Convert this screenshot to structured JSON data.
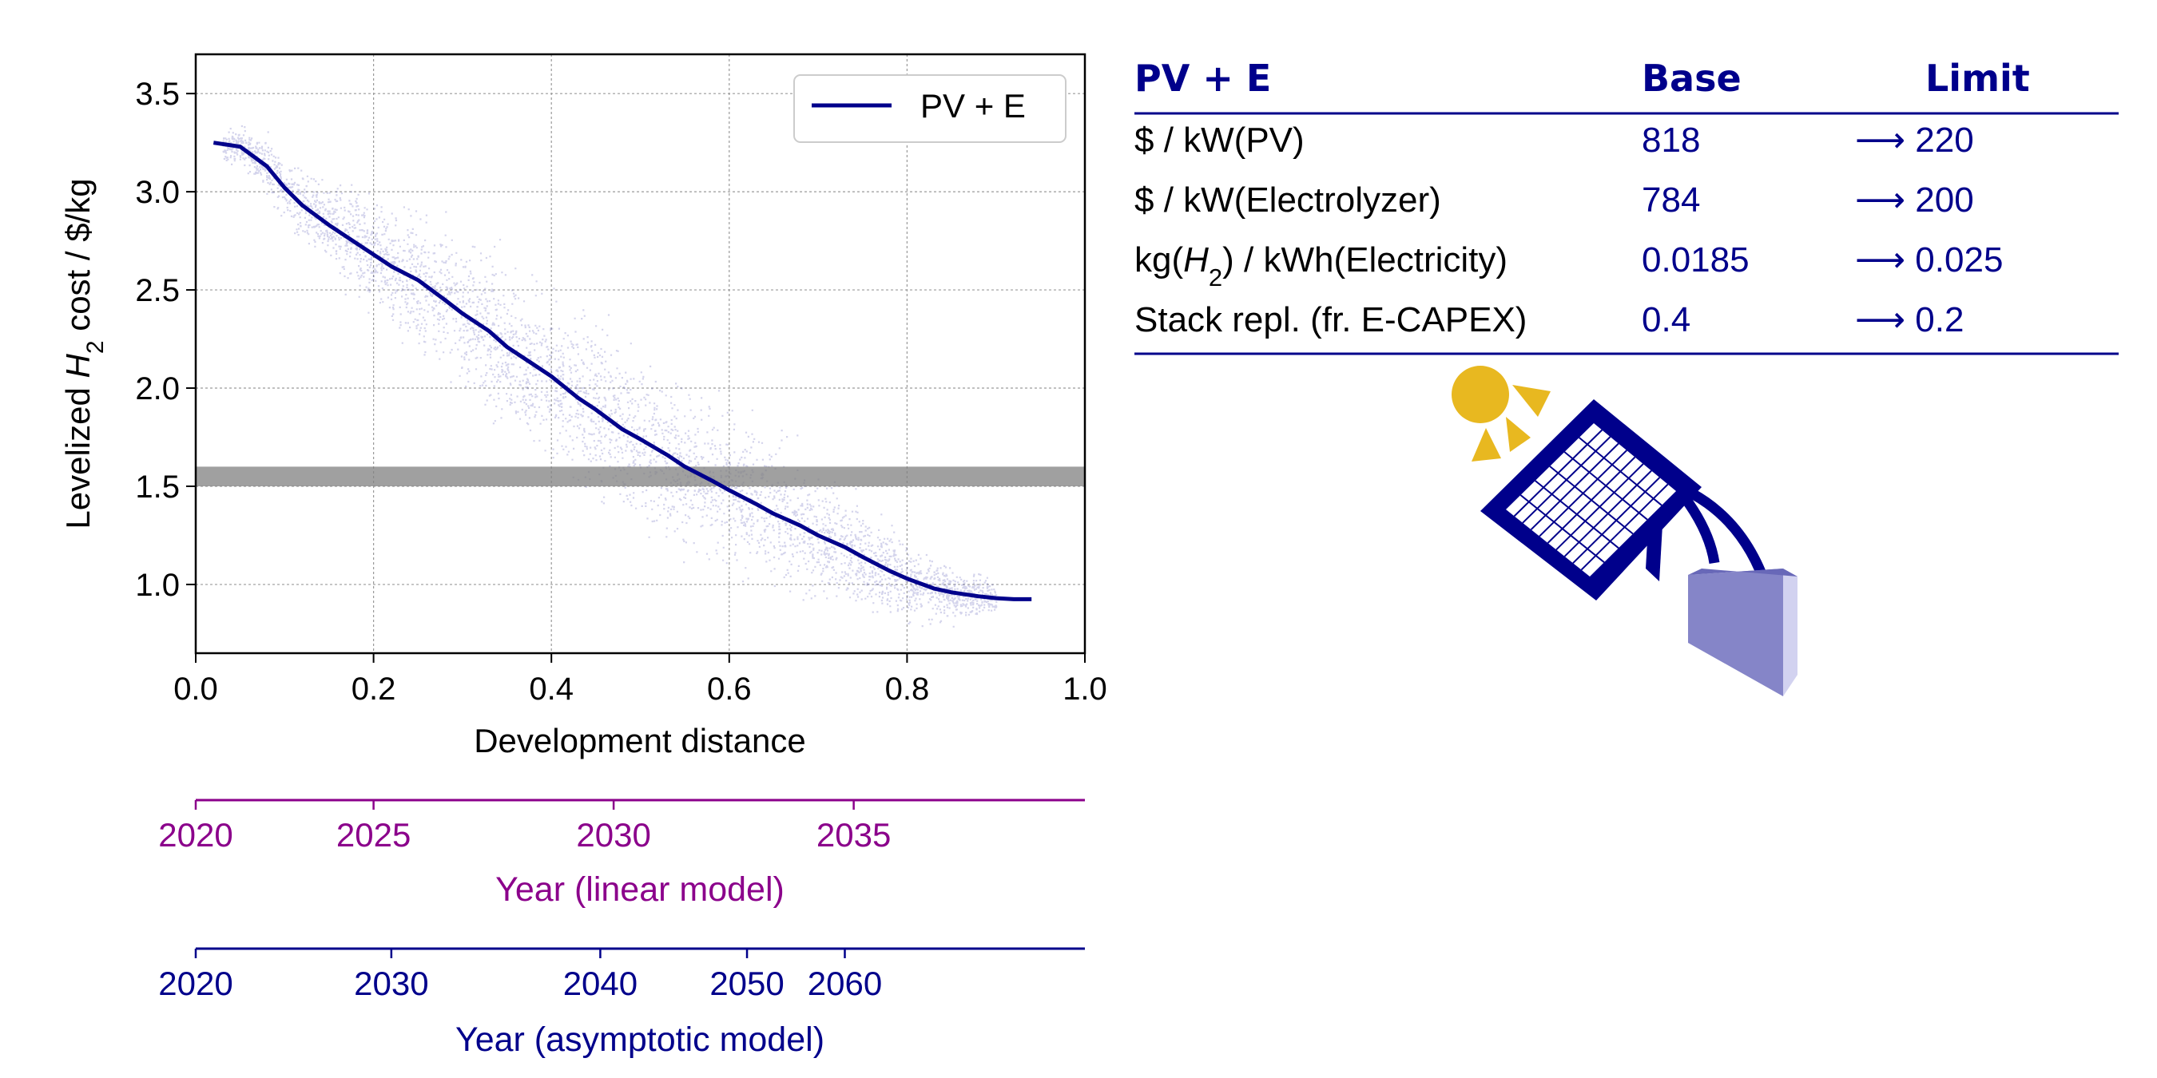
{
  "colors": {
    "navy": "#00008b",
    "purple": "#8b008b",
    "band": "#808080",
    "sun": "#e8b820",
    "tank": "#8585c8"
  },
  "chart_data": {
    "type": "line",
    "xlabel": "Development distance",
    "ylabel_prefix": "Levelized ",
    "ylabel_var": "H",
    "ylabel_sub": "2",
    "ylabel_suffix": " cost / $/kg",
    "xlim": [
      0.0,
      1.0
    ],
    "ylim": [
      0.65,
      3.7
    ],
    "xticks": [
      "0.0",
      "0.2",
      "0.4",
      "0.6",
      "0.8",
      "1.0"
    ],
    "yticks": [
      "1.0",
      "1.5",
      "2.0",
      "2.5",
      "3.0",
      "3.5"
    ],
    "grid": true,
    "legend_position": "upper right",
    "series": [
      {
        "name": "PV + E",
        "x": [
          0.02,
          0.05,
          0.08,
          0.1,
          0.12,
          0.15,
          0.18,
          0.2,
          0.22,
          0.25,
          0.28,
          0.3,
          0.33,
          0.35,
          0.38,
          0.4,
          0.43,
          0.45,
          0.48,
          0.5,
          0.53,
          0.55,
          0.58,
          0.6,
          0.63,
          0.65,
          0.68,
          0.7,
          0.73,
          0.75,
          0.78,
          0.8,
          0.83,
          0.85,
          0.88,
          0.9,
          0.92,
          0.94
        ],
        "y": [
          3.25,
          3.23,
          3.13,
          3.02,
          2.93,
          2.83,
          2.74,
          2.68,
          2.62,
          2.55,
          2.45,
          2.38,
          2.29,
          2.21,
          2.12,
          2.06,
          1.95,
          1.89,
          1.79,
          1.74,
          1.66,
          1.6,
          1.53,
          1.48,
          1.41,
          1.36,
          1.3,
          1.25,
          1.19,
          1.14,
          1.07,
          1.03,
          0.98,
          0.96,
          0.94,
          0.93,
          0.925,
          0.925
        ]
      }
    ],
    "band": {
      "ymin": 1.5,
      "ymax": 1.6
    },
    "scatter_band_halfwidth": 0.42,
    "secondary_axes": [
      {
        "label": "Year (linear model)",
        "ticks": [
          {
            "label": "2020",
            "distance": 0.0
          },
          {
            "label": "2025",
            "distance": 0.2
          },
          {
            "label": "2030",
            "distance": 0.47
          },
          {
            "label": "2035",
            "distance": 0.74
          }
        ]
      },
      {
        "label": "Year (asymptotic model)",
        "ticks": [
          {
            "label": "2020",
            "distance": 0.0
          },
          {
            "label": "2030",
            "distance": 0.22
          },
          {
            "label": "2040",
            "distance": 0.455
          },
          {
            "label": "2050",
            "distance": 0.62
          },
          {
            "label": "2060",
            "distance": 0.73
          }
        ]
      }
    ]
  },
  "table": {
    "headers": [
      "PV + E",
      "Base",
      "Limit"
    ],
    "rows": [
      {
        "label": "$ / kW(PV)",
        "base": "818",
        "limit": "⟶ 220"
      },
      {
        "label": "$ / kW(Electrolyzer)",
        "base": "784",
        "limit": "⟶ 200"
      },
      {
        "label_prefix": "kg(",
        "label_var": "H",
        "label_sub": "2",
        "label_suffix": ") / kWh(Electricity)",
        "base": "0.0185",
        "limit": "⟶ 0.025"
      },
      {
        "label": "Stack repl. (fr. E-CAPEX)",
        "base": "0.4",
        "limit": "⟶ 0.2"
      }
    ]
  },
  "illustration": {
    "icons": [
      "sun-icon",
      "solar-panel-icon",
      "hydrogen-tank-icon"
    ]
  }
}
